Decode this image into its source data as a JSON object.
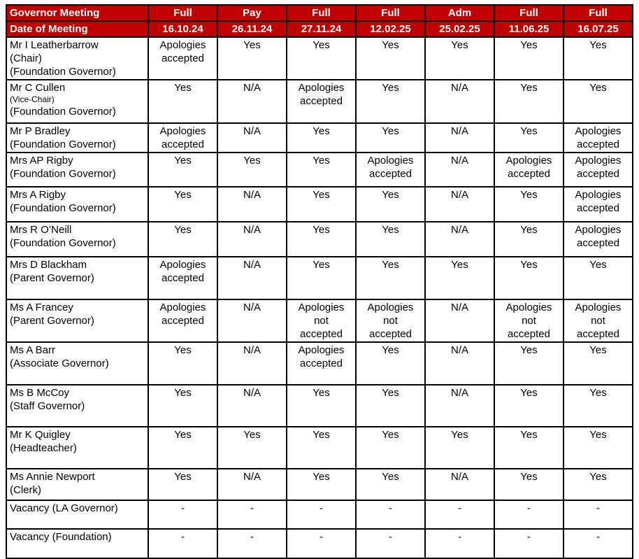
{
  "table": {
    "header": {
      "bg_color": "#C00000",
      "text_color": "#FFFFFF",
      "row1_label": "Governor Meeting",
      "row2_label": "Date of Meeting",
      "meetings": [
        {
          "type": "Full",
          "date": "16.10.24"
        },
        {
          "type": "Pay",
          "date": "26.11.24"
        },
        {
          "type": "Full",
          "date": "27.11.24"
        },
        {
          "type": "Full",
          "date": "12.02.25"
        },
        {
          "type": "Adm",
          "date": "25.02.25"
        },
        {
          "type": "Full",
          "date": "11.06.25"
        },
        {
          "type": "Full",
          "date": "16.07.25"
        }
      ]
    },
    "rows": [
      {
        "name_lines": [
          {
            "text": "Mr I Leatherbarrow"
          },
          {
            "text": "(Chair)"
          },
          {
            "text": "(Foundation Governor)"
          }
        ],
        "attendance": [
          "Apologies accepted",
          "Yes",
          "Yes",
          "Yes",
          "Yes",
          "Yes",
          "Yes"
        ]
      },
      {
        "name_lines": [
          {
            "text": "Mr C Cullen"
          },
          {
            "text": "(Vice-Chair)",
            "small": true
          },
          {
            "text": "(Foundation Governor)"
          }
        ],
        "attendance": [
          "Yes",
          "N/A",
          "Apologies accepted",
          "Yes",
          "N/A",
          "Yes",
          "Yes"
        ]
      },
      {
        "name_lines": [
          {
            "text": "Mr P Bradley"
          },
          {
            "text": "(Foundation Governor)"
          }
        ],
        "attendance": [
          "Apologies accepted",
          "N/A",
          "Yes",
          "Yes",
          "N/A",
          "Yes",
          "Apologies accepted"
        ]
      },
      {
        "name_lines": [
          {
            "text": "Mrs AP Rigby"
          },
          {
            "text": "(Foundation Governor)"
          }
        ],
        "attendance": [
          "Yes",
          "Yes",
          "Yes",
          "Apologies accepted",
          "N/A",
          "Apologies accepted",
          "Apologies accepted"
        ]
      },
      {
        "name_lines": [
          {
            "text": "Mrs A Rigby"
          },
          {
            "text": "(Foundation Governor)"
          }
        ],
        "attendance": [
          "Yes",
          "N/A",
          "Yes",
          "Yes",
          "N/A",
          "Yes",
          "Apologies accepted"
        ]
      },
      {
        "name_lines": [
          {
            "text": "Mrs R O’Neill"
          },
          {
            "text": "(Foundation Governor)"
          }
        ],
        "attendance": [
          "Yes",
          "N/A",
          "Yes",
          "Yes",
          "N/A",
          "Yes",
          "Apologies accepted"
        ]
      },
      {
        "name_lines": [
          {
            "text": "Mrs D Blackham"
          },
          {
            "text": "(Parent Governor)"
          }
        ],
        "attendance": [
          "Apologies accepted",
          "N/A",
          "Yes",
          "Yes",
          "Yes",
          "Yes",
          "Yes"
        ]
      },
      {
        "name_lines": [
          {
            "text": "Ms A Francey"
          },
          {
            "text": "(Parent Governor)"
          }
        ],
        "attendance": [
          "Apologies accepted",
          "N/A",
          "Apologies not accepted",
          "Apologies not accepted",
          "N/A",
          "Apologies not accepted",
          "Apologies not accepted"
        ]
      },
      {
        "name_lines": [
          {
            "text": "Ms A Barr"
          },
          {
            "text": "(Associate Governor)"
          }
        ],
        "attendance": [
          "Yes",
          "N/A",
          "Apologies accepted",
          "Yes",
          "N/A",
          "Yes",
          "Yes"
        ]
      },
      {
        "name_lines": [
          {
            "text": "Ms B McCoy"
          },
          {
            "text": "(Staff Governor)"
          }
        ],
        "attendance": [
          "Yes",
          "N/A",
          "Yes",
          "Yes",
          "N/A",
          "Yes",
          "Yes"
        ]
      },
      {
        "name_lines": [
          {
            "text": "Mr K Quigley"
          },
          {
            "text": "(Headteacher)"
          }
        ],
        "attendance": [
          "Yes",
          "Yes",
          "Yes",
          "Yes",
          "Yes",
          "Yes",
          "Yes"
        ]
      },
      {
        "name_lines": [
          {
            "text": "Ms Annie Newport"
          },
          {
            "text": "(Clerk)"
          }
        ],
        "attendance": [
          "Yes",
          "N/A",
          "Yes",
          "Yes",
          "N/A",
          "Yes",
          "Yes"
        ]
      },
      {
        "name_lines": [
          {
            "text": "Vacancy (LA Governor)"
          }
        ],
        "attendance": [
          "-",
          "-",
          "-",
          "-",
          "-",
          "-",
          "-"
        ]
      },
      {
        "name_lines": [
          {
            "text": "Vacancy (Foundation)"
          }
        ],
        "attendance": [
          "-",
          "-",
          "-",
          "-",
          "-",
          "-",
          "-"
        ]
      }
    ]
  }
}
